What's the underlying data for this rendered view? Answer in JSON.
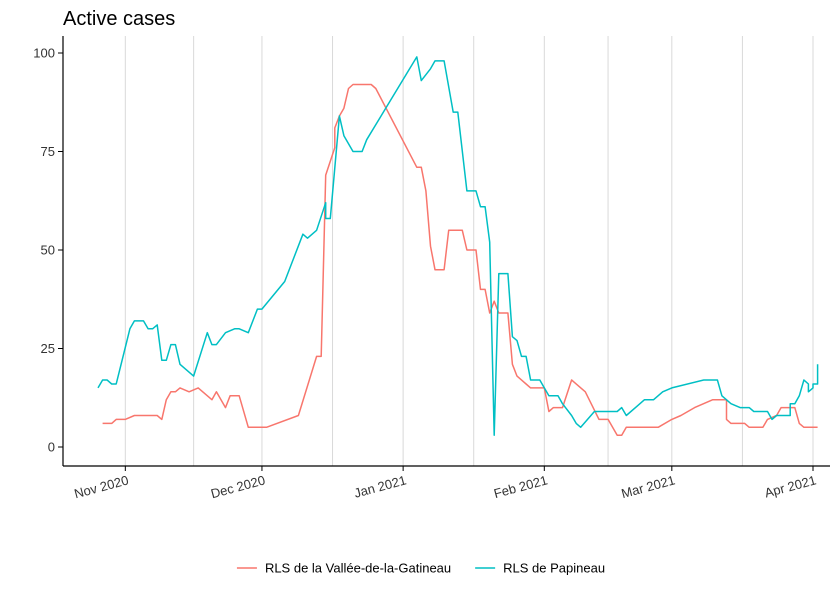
{
  "chart_data": {
    "type": "line",
    "title": "Active cases",
    "xlabel": "",
    "ylabel": "",
    "grid": "vertical only",
    "legend_position": "bottom",
    "ylim": [
      0,
      100
    ],
    "xlim": [
      "2020-10-26",
      "2021-04-01"
    ],
    "x_ticks": [
      {
        "date": "2020-11-01",
        "label": "Nov 2020"
      },
      {
        "date": "2020-12-01",
        "label": "Dec 2020"
      },
      {
        "date": "2021-01-01",
        "label": "Jan 2021"
      },
      {
        "date": "2021-02-01",
        "label": "Feb 2021"
      },
      {
        "date": "2021-03-01",
        "label": "Mar 2021"
      },
      {
        "date": "2021-04-01",
        "label": "Apr 2021"
      }
    ],
    "y_ticks": [
      0,
      25,
      50,
      75,
      100
    ],
    "series": [
      {
        "name": "RLS de la Vallée-de-la-Gatineau",
        "color": "#F8766D",
        "points": [
          [
            "2020-10-27",
            6
          ],
          [
            "2020-10-28",
            6
          ],
          [
            "2020-10-29",
            6
          ],
          [
            "2020-10-30",
            7
          ],
          [
            "2020-10-31",
            7
          ],
          [
            "2020-11-01",
            7
          ],
          [
            "2020-11-03",
            8
          ],
          [
            "2020-11-06",
            8
          ],
          [
            "2020-11-08",
            8
          ],
          [
            "2020-11-09",
            7
          ],
          [
            "2020-11-10",
            12
          ],
          [
            "2020-11-11",
            14
          ],
          [
            "2020-11-12",
            14
          ],
          [
            "2020-11-13",
            15
          ],
          [
            "2020-11-15",
            14
          ],
          [
            "2020-11-17",
            15
          ],
          [
            "2020-11-20",
            12
          ],
          [
            "2020-11-21",
            14
          ],
          [
            "2020-11-23",
            10
          ],
          [
            "2020-11-24",
            13
          ],
          [
            "2020-11-26",
            13
          ],
          [
            "2020-11-28",
            5
          ],
          [
            "2020-12-02",
            5
          ],
          [
            "2020-12-09",
            8
          ],
          [
            "2020-12-13",
            23
          ],
          [
            "2020-12-14",
            23
          ],
          [
            "2020-12-15",
            69
          ],
          [
            "2020-12-17",
            76
          ],
          [
            "2020-12-17",
            81
          ],
          [
            "2020-12-18",
            84
          ],
          [
            "2020-12-19",
            86
          ],
          [
            "2020-12-20",
            91
          ],
          [
            "2020-12-21",
            92
          ],
          [
            "2020-12-25",
            92
          ],
          [
            "2020-12-26",
            91
          ],
          [
            "2021-01-04",
            71
          ],
          [
            "2021-01-05",
            71
          ],
          [
            "2021-01-06",
            65
          ],
          [
            "2021-01-07",
            51
          ],
          [
            "2021-01-08",
            45
          ],
          [
            "2021-01-10",
            45
          ],
          [
            "2021-01-11",
            55
          ],
          [
            "2021-01-14",
            55
          ],
          [
            "2021-01-15",
            50
          ],
          [
            "2021-01-17",
            50
          ],
          [
            "2021-01-18",
            40
          ],
          [
            "2021-01-19",
            40
          ],
          [
            "2021-01-20",
            34
          ],
          [
            "2021-01-21",
            37
          ],
          [
            "2021-01-22",
            34
          ],
          [
            "2021-01-24",
            34
          ],
          [
            "2021-01-25",
            21
          ],
          [
            "2021-01-26",
            18
          ],
          [
            "2021-01-28",
            16
          ],
          [
            "2021-01-29",
            15
          ],
          [
            "2021-02-01",
            15
          ],
          [
            "2021-02-02",
            9
          ],
          [
            "2021-02-03",
            10
          ],
          [
            "2021-02-05",
            10
          ],
          [
            "2021-02-07",
            17
          ],
          [
            "2021-02-10",
            14
          ],
          [
            "2021-02-13",
            7
          ],
          [
            "2021-02-15",
            7
          ],
          [
            "2021-02-16",
            5
          ],
          [
            "2021-02-17",
            3
          ],
          [
            "2021-02-18",
            3
          ],
          [
            "2021-02-19",
            5
          ],
          [
            "2021-02-26",
            5
          ],
          [
            "2021-03-01",
            7
          ],
          [
            "2021-03-03",
            8
          ],
          [
            "2021-03-06",
            10
          ],
          [
            "2021-03-10",
            12
          ],
          [
            "2021-03-13",
            12
          ],
          [
            "2021-03-13",
            7
          ],
          [
            "2021-03-14",
            6
          ],
          [
            "2021-03-17",
            6
          ],
          [
            "2021-03-18",
            5
          ],
          [
            "2021-03-21",
            5
          ],
          [
            "2021-03-22",
            7
          ],
          [
            "2021-03-24",
            8
          ],
          [
            "2021-03-25",
            10
          ],
          [
            "2021-03-28",
            10
          ],
          [
            "2021-03-29",
            6
          ],
          [
            "2021-03-30",
            5
          ],
          [
            "2021-04-02",
            5
          ]
        ]
      },
      {
        "name": "RLS de Papineau",
        "color": "#00BFC4",
        "points": [
          [
            "2020-10-26",
            15
          ],
          [
            "2020-10-27",
            17
          ],
          [
            "2020-10-28",
            17
          ],
          [
            "2020-10-29",
            16
          ],
          [
            "2020-10-30",
            16
          ],
          [
            "2020-11-02",
            30
          ],
          [
            "2020-11-03",
            32
          ],
          [
            "2020-11-05",
            32
          ],
          [
            "2020-11-06",
            30
          ],
          [
            "2020-11-07",
            30
          ],
          [
            "2020-11-08",
            31
          ],
          [
            "2020-11-09",
            22
          ],
          [
            "2020-11-10",
            22
          ],
          [
            "2020-11-11",
            26
          ],
          [
            "2020-11-12",
            26
          ],
          [
            "2020-11-13",
            21
          ],
          [
            "2020-11-16",
            18
          ],
          [
            "2020-11-19",
            29
          ],
          [
            "2020-11-20",
            26
          ],
          [
            "2020-11-21",
            26
          ],
          [
            "2020-11-23",
            29
          ],
          [
            "2020-11-25",
            30
          ],
          [
            "2020-11-26",
            30
          ],
          [
            "2020-11-28",
            29
          ],
          [
            "2020-11-30",
            35
          ],
          [
            "2020-12-01",
            35
          ],
          [
            "2020-12-06",
            42
          ],
          [
            "2020-12-10",
            54
          ],
          [
            "2020-12-11",
            53
          ],
          [
            "2020-12-13",
            55
          ],
          [
            "2020-12-15",
            62
          ],
          [
            "2020-12-15",
            58
          ],
          [
            "2020-12-16",
            58
          ],
          [
            "2020-12-18",
            84
          ],
          [
            "2020-12-19",
            79
          ],
          [
            "2020-12-21",
            75
          ],
          [
            "2020-12-23",
            75
          ],
          [
            "2020-12-24",
            78
          ],
          [
            "2021-01-04",
            99
          ],
          [
            "2021-01-05",
            93
          ],
          [
            "2021-01-07",
            96
          ],
          [
            "2021-01-08",
            98
          ],
          [
            "2021-01-10",
            98
          ],
          [
            "2021-01-12",
            85
          ],
          [
            "2021-01-13",
            85
          ],
          [
            "2021-01-15",
            65
          ],
          [
            "2021-01-17",
            65
          ],
          [
            "2021-01-18",
            61
          ],
          [
            "2021-01-19",
            61
          ],
          [
            "2021-01-20",
            52
          ],
          [
            "2021-01-21",
            3
          ],
          [
            "2021-01-22",
            44
          ],
          [
            "2021-01-24",
            44
          ],
          [
            "2021-01-25",
            28
          ],
          [
            "2021-01-26",
            27
          ],
          [
            "2021-01-27",
            23
          ],
          [
            "2021-01-28",
            23
          ],
          [
            "2021-01-29",
            17
          ],
          [
            "2021-01-31",
            17
          ],
          [
            "2021-02-01",
            15
          ],
          [
            "2021-02-02",
            13
          ],
          [
            "2021-02-04",
            13
          ],
          [
            "2021-02-05",
            11
          ],
          [
            "2021-02-07",
            8
          ],
          [
            "2021-02-08",
            6
          ],
          [
            "2021-02-09",
            5
          ],
          [
            "2021-02-12",
            9
          ],
          [
            "2021-02-17",
            9
          ],
          [
            "2021-02-18",
            10
          ],
          [
            "2021-02-19",
            8
          ],
          [
            "2021-02-23",
            12
          ],
          [
            "2021-02-25",
            12
          ],
          [
            "2021-02-27",
            14
          ],
          [
            "2021-03-01",
            15
          ],
          [
            "2021-03-08",
            17
          ],
          [
            "2021-03-11",
            17
          ],
          [
            "2021-03-12",
            13
          ],
          [
            "2021-03-14",
            11
          ],
          [
            "2021-03-16",
            10
          ],
          [
            "2021-03-18",
            10
          ],
          [
            "2021-03-19",
            9
          ],
          [
            "2021-03-22",
            9
          ],
          [
            "2021-03-23",
            7
          ],
          [
            "2021-03-24",
            8
          ],
          [
            "2021-03-27",
            8
          ],
          [
            "2021-03-27",
            11
          ],
          [
            "2021-03-28",
            11
          ],
          [
            "2021-03-29",
            13
          ],
          [
            "2021-03-30",
            17
          ],
          [
            "2021-03-31",
            16
          ],
          [
            "2021-03-31",
            14
          ],
          [
            "2021-04-01",
            15
          ],
          [
            "2021-04-01",
            16
          ],
          [
            "2021-04-02",
            16
          ],
          [
            "2021-04-02",
            21
          ]
        ]
      }
    ]
  }
}
